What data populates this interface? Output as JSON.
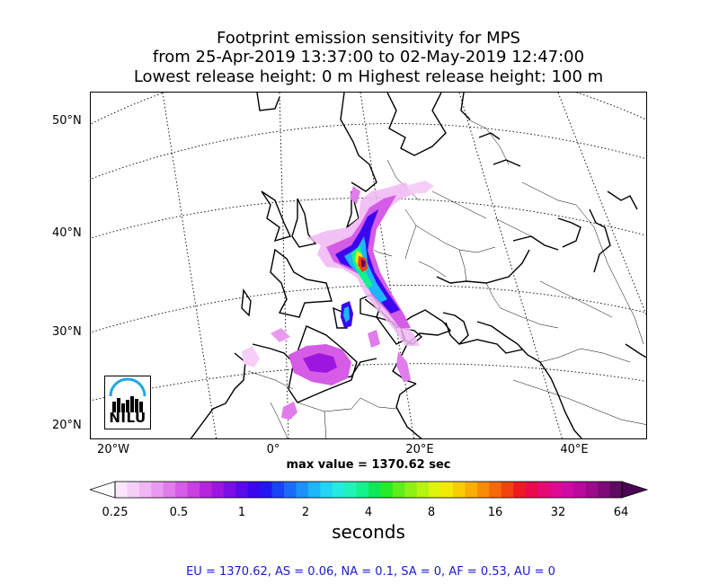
{
  "title": {
    "line1": "Footprint emission sensitivity for MPS",
    "line2": "from 25-Apr-2019 13:37:00 to 02-May-2019 12:47:00",
    "line3": "Lowest release height: 0 m      Highest release height: 100 m"
  },
  "map": {
    "lat_labels": [
      "50°N",
      "40°N",
      "30°N",
      "20°N"
    ],
    "lon_labels": [
      "20°W",
      "0°",
      "20°E",
      "40°E"
    ],
    "max_value_text": "max value = 1370.62 sec",
    "logo_text": "NILU"
  },
  "colorbar": {
    "tick_labels": [
      "0.25",
      "0.5",
      "1",
      "2",
      "4",
      "8",
      "16",
      "32",
      "64"
    ],
    "unit": "seconds",
    "colors": [
      "#fbe6fb",
      "#f6cff8",
      "#f0b6f4",
      "#e99af0",
      "#e07ceb",
      "#d55ce6",
      "#c83fe2",
      "#b625dd",
      "#9c16df",
      "#7a0fe4",
      "#5a0ae8",
      "#3b06ee",
      "#2217f2",
      "#1844f4",
      "#1a6cf6",
      "#1b92f8",
      "#1eb6f8",
      "#22d5f4",
      "#24eadf",
      "#1ff3b8",
      "#14f28b",
      "#0ce85a",
      "#27ea2a",
      "#5eee1c",
      "#8ef116",
      "#b8f310",
      "#dcf40a",
      "#f2ea06",
      "#f8cd04",
      "#f9ae04",
      "#f98c06",
      "#f6680a",
      "#f2420f",
      "#ee1a22",
      "#ea0b4c",
      "#e70a72",
      "#e00a92",
      "#d00aa6",
      "#b90a9c",
      "#9c0a8a",
      "#7d0a78",
      "#600a60"
    ]
  },
  "region_stats": "EU = 1370.62,  AS = 0.06,  NA = 0.1,  SA = 0,  AF = 0.53,  AU = 0"
}
